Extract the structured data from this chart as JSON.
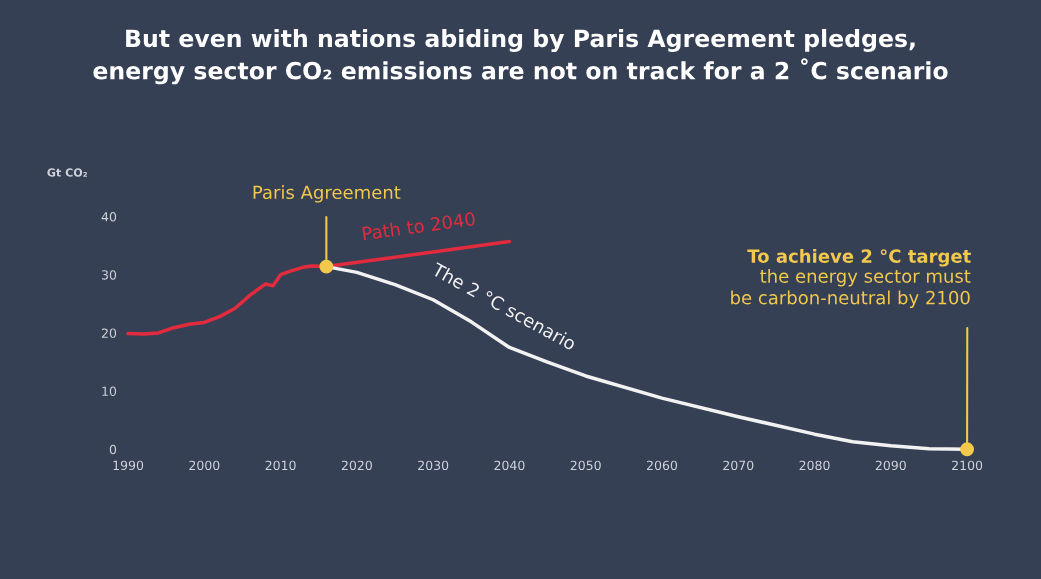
{
  "chart_data": {
    "type": "line",
    "title": "But even with nations abiding by Paris Agreement pledges,\nenergy sector CO₂ emissions are not on track for a 2 ˚C scenario",
    "ylabel": "Gt CO₂",
    "xlim": [
      1990,
      2100
    ],
    "ylim": [
      0,
      40
    ],
    "xticks": [
      1990,
      2000,
      2010,
      2020,
      2030,
      2040,
      2050,
      2060,
      2070,
      2080,
      2090,
      2100
    ],
    "yticks": [
      0,
      10,
      20,
      30,
      40
    ],
    "grid": false,
    "legend": false,
    "marker": "none",
    "line_style": "solid",
    "series": [
      {
        "color": "#e32b3e",
        "x": [
          1990,
          1992,
          1994,
          1996,
          1998,
          2000,
          2002,
          2004,
          2006,
          2008,
          2009,
          2010,
          2011,
          2013,
          2014,
          2016
        ],
        "values": [
          19.9,
          19.8,
          20.0,
          20.9,
          21.5,
          21.8,
          22.8,
          24.2,
          26.5,
          28.4,
          28.1,
          30.0,
          30.5,
          31.3,
          31.5,
          31.4
        ]
      },
      {
        "name": "Path to 2040",
        "color": "#e32b3e",
        "x": [
          2016,
          2040
        ],
        "values": [
          31.4,
          35.7
        ]
      },
      {
        "name": "The 2 °C scenario",
        "color": "#f2f2f2",
        "x": [
          2016,
          2020,
          2025,
          2030,
          2035,
          2040,
          2045,
          2050,
          2060,
          2070,
          2080,
          2085,
          2090,
          2095,
          2100
        ],
        "values": [
          31.4,
          30.4,
          28.3,
          25.7,
          21.9,
          17.5,
          15.0,
          12.6,
          8.8,
          5.6,
          2.6,
          1.3,
          0.6,
          0.1,
          0
        ]
      }
    ],
    "annotations": [
      {
        "text": "Paris Agreement",
        "x": 2016,
        "y": 31.4
      },
      "To achieve 2 °C target",
      {
        "text": "the energy sector must\nbe carbon-neutral by 2100",
        "x": 2100,
        "y": 0
      }
    ]
  }
}
